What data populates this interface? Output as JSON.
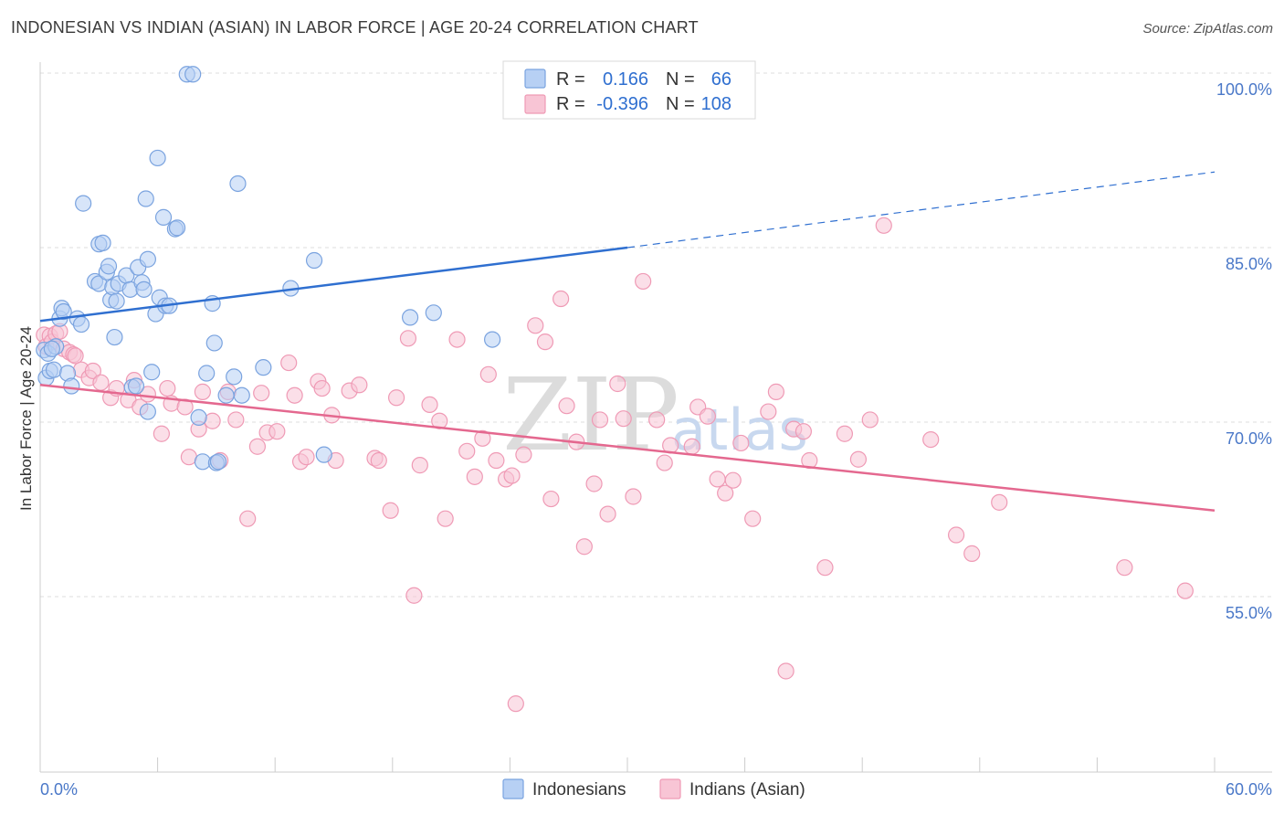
{
  "header": {
    "title": "INDONESIAN VS INDIAN (ASIAN) IN LABOR FORCE | AGE 20-24 CORRELATION CHART",
    "source": "Source: ZipAtlas.com"
  },
  "watermark": {
    "part1": "ZIP",
    "part2": "atlas"
  },
  "chart_data": {
    "type": "scatter",
    "title": "INDONESIAN VS INDIAN (ASIAN) IN LABOR FORCE | AGE 20-24 CORRELATION CHART",
    "xlabel": "",
    "ylabel": "In Labor Force | Age 20-24",
    "xlim": [
      0,
      60
    ],
    "ylim": [
      40,
      101
    ],
    "x_tick_labels": [
      "0.0%",
      "60.0%"
    ],
    "y_ticks": [
      55,
      70,
      85,
      100
    ],
    "y_tick_labels": [
      "55.0%",
      "70.0%",
      "85.0%",
      "100.0%"
    ],
    "grid": true,
    "legend_position": "top-center",
    "colors": {
      "indonesians_fill": "#b7d0f4",
      "indonesians_stroke": "#7aa3df",
      "indonesians_line": "#2f6fd0",
      "indians_fill": "#f8c5d5",
      "indians_stroke": "#ef9ab5",
      "indians_line": "#e4688f"
    },
    "legend": [
      {
        "r_label": "R =",
        "r_value": "0.166",
        "n_label": "N =",
        "n_value": "66"
      },
      {
        "r_label": "R =",
        "r_value": "-0.396",
        "n_label": "N =",
        "n_value": "108"
      }
    ],
    "series": [
      {
        "name": "Indonesians",
        "trend": {
          "x0": 0,
          "y0": 78.7,
          "x1": 30,
          "y1": 85.0,
          "x_dash_end": 60,
          "y_dash_end": 91.5
        },
        "points": [
          [
            0.2,
            76.2
          ],
          [
            0.3,
            73.8
          ],
          [
            0.4,
            75.9
          ],
          [
            0.5,
            74.4
          ],
          [
            0.7,
            74.5
          ],
          [
            0.8,
            76.5
          ],
          [
            1.0,
            78.9
          ],
          [
            1.1,
            79.8
          ],
          [
            1.2,
            79.5
          ],
          [
            1.4,
            74.2
          ],
          [
            1.6,
            73.1
          ],
          [
            1.9,
            78.9
          ],
          [
            2.1,
            78.4
          ],
          [
            2.2,
            88.8
          ],
          [
            2.8,
            82.1
          ],
          [
            3.0,
            81.9
          ],
          [
            3.0,
            85.3
          ],
          [
            3.2,
            85.4
          ],
          [
            3.4,
            82.9
          ],
          [
            3.5,
            83.4
          ],
          [
            3.6,
            80.5
          ],
          [
            3.7,
            81.6
          ],
          [
            3.8,
            77.3
          ],
          [
            3.9,
            80.4
          ],
          [
            4.0,
            81.9
          ],
          [
            4.4,
            82.6
          ],
          [
            4.6,
            81.4
          ],
          [
            4.7,
            73.0
          ],
          [
            4.9,
            73.1
          ],
          [
            5.0,
            83.3
          ],
          [
            5.2,
            82.0
          ],
          [
            5.3,
            81.4
          ],
          [
            5.5,
            84.0
          ],
          [
            5.5,
            70.9
          ],
          [
            5.4,
            89.2
          ],
          [
            5.7,
            74.3
          ],
          [
            5.9,
            79.3
          ],
          [
            6.0,
            92.7
          ],
          [
            6.1,
            80.7
          ],
          [
            6.3,
            87.6
          ],
          [
            6.4,
            80.0
          ],
          [
            6.6,
            80.0
          ],
          [
            6.9,
            86.6
          ],
          [
            7.0,
            86.7
          ],
          [
            7.5,
            99.9
          ],
          [
            7.8,
            99.9
          ],
          [
            8.1,
            70.4
          ],
          [
            8.3,
            66.6
          ],
          [
            8.5,
            74.2
          ],
          [
            8.8,
            80.2
          ],
          [
            8.9,
            76.8
          ],
          [
            9.0,
            66.5
          ],
          [
            9.1,
            66.6
          ],
          [
            9.5,
            72.3
          ],
          [
            9.9,
            73.9
          ],
          [
            10.1,
            90.5
          ],
          [
            10.3,
            72.3
          ],
          [
            11.4,
            74.7
          ],
          [
            12.8,
            81.5
          ],
          [
            14.0,
            83.9
          ],
          [
            14.5,
            67.2
          ],
          [
            18.9,
            79.0
          ],
          [
            20.1,
            79.4
          ],
          [
            23.1,
            77.1
          ],
          [
            26.8,
            99.9
          ],
          [
            0.6,
            76.3
          ]
        ]
      },
      {
        "name": "Indians (Asian)",
        "trend": {
          "x0": 0,
          "y0": 73.2,
          "x1": 60,
          "y1": 62.4
        },
        "points": [
          [
            0.2,
            77.5
          ],
          [
            0.3,
            76.5
          ],
          [
            0.5,
            77.4
          ],
          [
            0.6,
            76.9
          ],
          [
            0.8,
            77.6
          ],
          [
            1.0,
            77.8
          ],
          [
            1.2,
            76.3
          ],
          [
            1.5,
            76.0
          ],
          [
            1.7,
            75.8
          ],
          [
            1.8,
            75.7
          ],
          [
            2.1,
            74.5
          ],
          [
            2.5,
            73.8
          ],
          [
            2.7,
            74.4
          ],
          [
            3.1,
            73.4
          ],
          [
            3.6,
            72.1
          ],
          [
            3.9,
            72.9
          ],
          [
            4.5,
            71.9
          ],
          [
            4.8,
            73.6
          ],
          [
            5.1,
            71.3
          ],
          [
            5.5,
            72.4
          ],
          [
            6.2,
            69.0
          ],
          [
            6.5,
            72.9
          ],
          [
            6.7,
            71.6
          ],
          [
            7.4,
            71.3
          ],
          [
            7.6,
            67.0
          ],
          [
            8.1,
            69.4
          ],
          [
            8.3,
            72.6
          ],
          [
            8.8,
            70.1
          ],
          [
            9.2,
            66.7
          ],
          [
            9.6,
            72.6
          ],
          [
            10.0,
            70.2
          ],
          [
            10.6,
            61.7
          ],
          [
            11.1,
            67.9
          ],
          [
            11.3,
            72.5
          ],
          [
            11.6,
            69.1
          ],
          [
            12.1,
            69.2
          ],
          [
            12.7,
            75.1
          ],
          [
            13.0,
            72.3
          ],
          [
            13.3,
            66.6
          ],
          [
            13.6,
            67.0
          ],
          [
            14.2,
            73.5
          ],
          [
            14.4,
            72.9
          ],
          [
            14.9,
            70.6
          ],
          [
            15.1,
            66.7
          ],
          [
            15.8,
            72.7
          ],
          [
            16.3,
            73.2
          ],
          [
            17.1,
            66.9
          ],
          [
            17.3,
            66.7
          ],
          [
            17.9,
            62.4
          ],
          [
            18.2,
            72.1
          ],
          [
            18.8,
            77.2
          ],
          [
            19.1,
            55.1
          ],
          [
            19.4,
            66.3
          ],
          [
            19.9,
            71.5
          ],
          [
            20.4,
            70.1
          ],
          [
            20.7,
            61.7
          ],
          [
            21.3,
            77.1
          ],
          [
            21.8,
            67.5
          ],
          [
            22.2,
            65.3
          ],
          [
            22.6,
            68.6
          ],
          [
            22.9,
            74.1
          ],
          [
            23.3,
            66.7
          ],
          [
            23.8,
            65.1
          ],
          [
            24.1,
            65.4
          ],
          [
            24.7,
            67.2
          ],
          [
            25.3,
            78.3
          ],
          [
            25.8,
            76.9
          ],
          [
            26.1,
            63.4
          ],
          [
            26.6,
            80.6
          ],
          [
            26.9,
            71.4
          ],
          [
            27.4,
            68.3
          ],
          [
            27.8,
            59.3
          ],
          [
            28.3,
            64.7
          ],
          [
            28.6,
            70.2
          ],
          [
            29.0,
            62.1
          ],
          [
            29.5,
            73.3
          ],
          [
            29.8,
            70.3
          ],
          [
            30.3,
            63.6
          ],
          [
            30.8,
            82.1
          ],
          [
            31.5,
            70.2
          ],
          [
            31.9,
            66.5
          ],
          [
            32.2,
            68.0
          ],
          [
            33.3,
            67.9
          ],
          [
            33.6,
            71.3
          ],
          [
            34.1,
            70.5
          ],
          [
            34.6,
            65.1
          ],
          [
            35.0,
            63.9
          ],
          [
            35.4,
            65.0
          ],
          [
            35.8,
            68.2
          ],
          [
            36.4,
            61.7
          ],
          [
            37.2,
            70.9
          ],
          [
            37.6,
            72.6
          ],
          [
            38.5,
            69.4
          ],
          [
            39.0,
            69.2
          ],
          [
            39.3,
            66.7
          ],
          [
            40.1,
            57.5
          ],
          [
            41.1,
            69.0
          ],
          [
            41.8,
            66.8
          ],
          [
            42.4,
            70.2
          ],
          [
            43.1,
            86.9
          ],
          [
            45.5,
            68.5
          ],
          [
            46.8,
            60.3
          ],
          [
            47.6,
            58.7
          ],
          [
            49.0,
            63.1
          ],
          [
            55.4,
            57.5
          ],
          [
            58.5,
            55.5
          ],
          [
            38.1,
            48.6
          ],
          [
            24.3,
            45.8
          ]
        ]
      }
    ]
  },
  "bottom_legend": [
    {
      "label": "Indonesians"
    },
    {
      "label": "Indians (Asian)"
    }
  ]
}
